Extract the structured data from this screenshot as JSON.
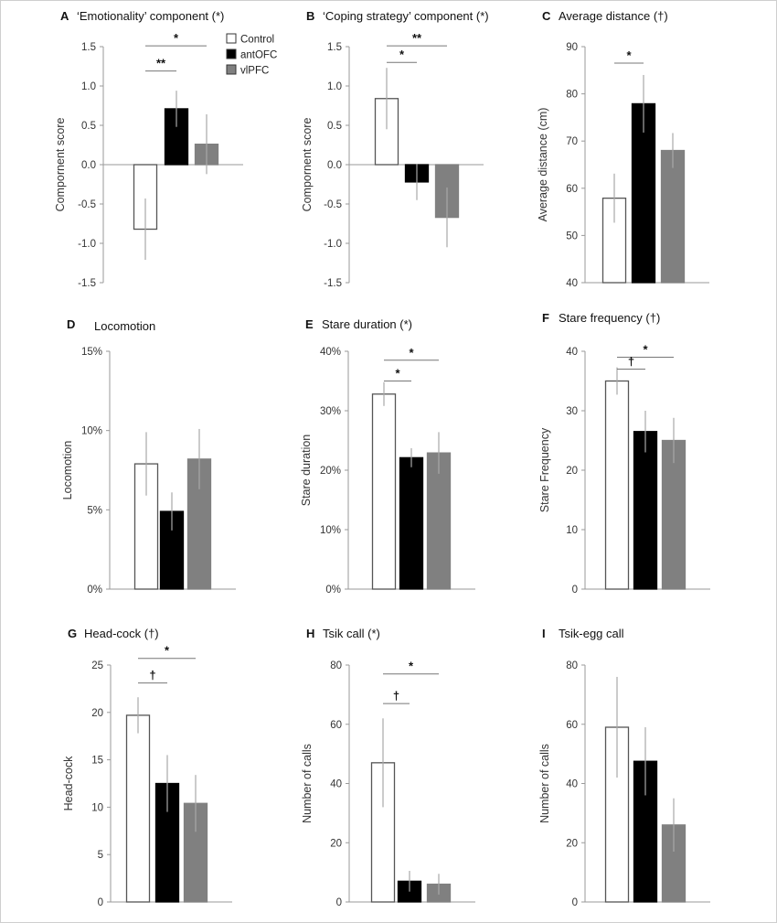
{
  "legend": {
    "items": [
      {
        "label": "Control",
        "color": "#ffffff"
      },
      {
        "label": "antOFC",
        "color": "#000000"
      },
      {
        "label": "vlPFC",
        "color": "#808080"
      }
    ]
  },
  "chart_data": [
    {
      "panel": "A",
      "title": "‘Emotionality’ component (*)",
      "type": "bar",
      "ylabel": "Compornent score",
      "ylim": [
        -1.5,
        1.5
      ],
      "yticks": [
        -1.5,
        -1.0,
        -0.5,
        0.0,
        0.5,
        1.0,
        1.5
      ],
      "ytick_labels": [
        "-1.5",
        "-1.0",
        "-0.5",
        "0.0",
        "0.5",
        "1.0",
        "1.5"
      ],
      "zero_axis": true,
      "groups": [
        "Control",
        "antOFC",
        "vlPFC"
      ],
      "values": [
        -0.82,
        0.71,
        0.26
      ],
      "errors": [
        0.39,
        0.23,
        0.38
      ],
      "significance": [
        {
          "from": 0,
          "to": 2,
          "label": "*",
          "y": 1.51
        },
        {
          "from": 0,
          "to": 1,
          "label": "**",
          "y": 1.19
        }
      ]
    },
    {
      "panel": "B",
      "title": "‘Coping strategy’ component (*)",
      "type": "bar",
      "ylabel": "Compornent score",
      "ylim": [
        -1.5,
        1.5
      ],
      "yticks": [
        -1.5,
        -1.0,
        -0.5,
        0.0,
        0.5,
        1.0,
        1.5
      ],
      "ytick_labels": [
        "-1.5",
        "-1.0",
        "-0.5",
        "0.0",
        "0.5",
        "1.0",
        "1.5"
      ],
      "zero_axis": true,
      "groups": [
        "Control",
        "antOFC",
        "vlPFC"
      ],
      "values": [
        0.84,
        -0.22,
        -0.67
      ],
      "errors": [
        0.39,
        0.23,
        0.38
      ],
      "significance": [
        {
          "from": 0,
          "to": 2,
          "label": "**",
          "y": 1.51
        },
        {
          "from": 0,
          "to": 1,
          "label": "*",
          "y": 1.3
        }
      ]
    },
    {
      "panel": "C",
      "title": "Average distance (†)",
      "type": "bar",
      "ylabel": "Average distance (cm)",
      "ylim": [
        40,
        90
      ],
      "yticks": [
        40,
        50,
        60,
        70,
        80,
        90
      ],
      "ytick_labels": [
        "40",
        "50",
        "60",
        "70",
        "80",
        "90"
      ],
      "groups": [
        "Control",
        "antOFC",
        "vlPFC"
      ],
      "values": [
        57.9,
        77.9,
        68.0
      ],
      "errors": [
        5.2,
        6.1,
        3.7
      ],
      "significance": [
        {
          "from": 0,
          "to": 1,
          "label": "*",
          "y": 86.5
        }
      ]
    },
    {
      "panel": "D",
      "title": "Locomotion",
      "type": "bar",
      "ylabel": "Locomotion",
      "ylim": [
        0,
        15
      ],
      "yticks": [
        0,
        5,
        10,
        15
      ],
      "ytick_labels": [
        "0%",
        "5%",
        "10%",
        "15%"
      ],
      "groups": [
        "Control",
        "antOFC",
        "vlPFC"
      ],
      "values": [
        7.9,
        4.9,
        8.2
      ],
      "errors": [
        2.0,
        1.2,
        1.9
      ],
      "significance": []
    },
    {
      "panel": "E",
      "title": "Stare duration (*)",
      "type": "bar",
      "ylabel": "Stare duration",
      "ylim": [
        0,
        40
      ],
      "yticks": [
        0,
        10,
        20,
        30,
        40
      ],
      "ytick_labels": [
        "0%",
        "10%",
        "20%",
        "30%",
        "40%"
      ],
      "groups": [
        "Control",
        "antOFC",
        "vlPFC"
      ],
      "values": [
        32.8,
        22.1,
        22.9
      ],
      "errors": [
        2.0,
        1.6,
        3.5
      ],
      "significance": [
        {
          "from": 0,
          "to": 2,
          "label": "*",
          "y": 38.5
        },
        {
          "from": 0,
          "to": 1,
          "label": "*",
          "y": 35.0
        }
      ]
    },
    {
      "panel": "F",
      "title": "Stare frequency (†)",
      "type": "bar",
      "ylabel": "Stare Frequency",
      "ylim": [
        0,
        40
      ],
      "yticks": [
        0,
        10,
        20,
        30,
        40
      ],
      "ytick_labels": [
        "0",
        "10",
        "20",
        "30",
        "40"
      ],
      "groups": [
        "Control",
        "antOFC",
        "vlPFC"
      ],
      "values": [
        35.0,
        26.5,
        25.0
      ],
      "errors": [
        2.3,
        3.5,
        3.8
      ],
      "significance": [
        {
          "from": 0,
          "to": 2,
          "label": "*",
          "y": 39.0
        },
        {
          "from": 0,
          "to": 1,
          "label": "†",
          "y": 37.0
        }
      ]
    },
    {
      "panel": "G",
      "title": "Head-cock (†)",
      "type": "bar",
      "ylabel": "Head-cock",
      "ylim": [
        0,
        25
      ],
      "yticks": [
        0,
        5,
        10,
        15,
        20,
        25
      ],
      "ytick_labels": [
        "0",
        "5",
        "10",
        "15",
        "20",
        "25"
      ],
      "groups": [
        "Control",
        "antOFC",
        "vlPFC"
      ],
      "values": [
        19.7,
        12.5,
        10.4
      ],
      "errors": [
        1.9,
        3.0,
        3.0
      ],
      "significance": [
        {
          "from": 0,
          "to": 2,
          "label": "*",
          "y": 25.7
        },
        {
          "from": 0,
          "to": 1,
          "label": "†",
          "y": 23.1
        }
      ]
    },
    {
      "panel": "H",
      "title": "Tsik call (*)",
      "type": "bar",
      "ylabel": "Number of calls",
      "ylim": [
        0,
        80
      ],
      "yticks": [
        0,
        20,
        40,
        60,
        80
      ],
      "ytick_labels": [
        "0",
        "20",
        "40",
        "60",
        "80"
      ],
      "groups": [
        "Control",
        "antOFC",
        "vlPFC"
      ],
      "values": [
        47.0,
        7.0,
        6.0
      ],
      "errors": [
        15.0,
        3.5,
        3.5
      ],
      "significance": [
        {
          "from": 0,
          "to": 2,
          "label": "*",
          "y": 77.0
        },
        {
          "from": 0,
          "to": 1,
          "label": "†",
          "y": 67.0
        }
      ]
    },
    {
      "panel": "I",
      "title": "Tsik-egg call",
      "type": "bar",
      "ylabel": "Number of calls",
      "ylim": [
        0,
        80
      ],
      "yticks": [
        0,
        20,
        40,
        60,
        80
      ],
      "ytick_labels": [
        "0",
        "20",
        "40",
        "60",
        "80"
      ],
      "groups": [
        "Control",
        "antOFC",
        "vlPFC"
      ],
      "values": [
        59.0,
        47.5,
        26.0
      ],
      "errors": [
        17.0,
        11.5,
        9.0
      ],
      "significance": []
    }
  ]
}
